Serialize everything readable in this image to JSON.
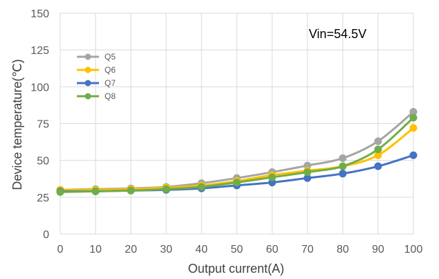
{
  "chart_data": {
    "type": "line",
    "title": "",
    "xlabel": "Output current(A)",
    "ylabel": "Device temperature(℃)",
    "annotation": "Vin=54.5V",
    "x": [
      0,
      10,
      20,
      30,
      40,
      50,
      60,
      70,
      80,
      90,
      100
    ],
    "xlim": [
      0,
      100
    ],
    "ylim": [
      0,
      150
    ],
    "xticks": [
      "0",
      "10",
      "20",
      "30",
      "40",
      "50",
      "60",
      "70",
      "80",
      "90",
      "100"
    ],
    "yticks": [
      "0",
      "25",
      "50",
      "75",
      "100",
      "125",
      "150"
    ],
    "grid": "both",
    "legend_position": "top-left",
    "series": [
      {
        "name": "Q5",
        "color": "#a5a5a5",
        "values": [
          30,
          30.5,
          31,
          32,
          34.5,
          38,
          42,
          46.5,
          51.5,
          63,
          83
        ]
      },
      {
        "name": "Q6",
        "color": "#ffc000",
        "values": [
          30,
          30,
          30.5,
          31.5,
          33,
          36,
          40,
          43,
          46,
          53.5,
          72
        ]
      },
      {
        "name": "Q7",
        "color": "#4472c4",
        "values": [
          29,
          29,
          29.5,
          30,
          31,
          33,
          35,
          38,
          41,
          46,
          53.5
        ]
      },
      {
        "name": "Q8",
        "color": "#70ad47",
        "values": [
          28.5,
          29,
          29.5,
          30.5,
          32,
          35,
          38.5,
          42,
          46,
          57.5,
          79
        ]
      }
    ]
  }
}
